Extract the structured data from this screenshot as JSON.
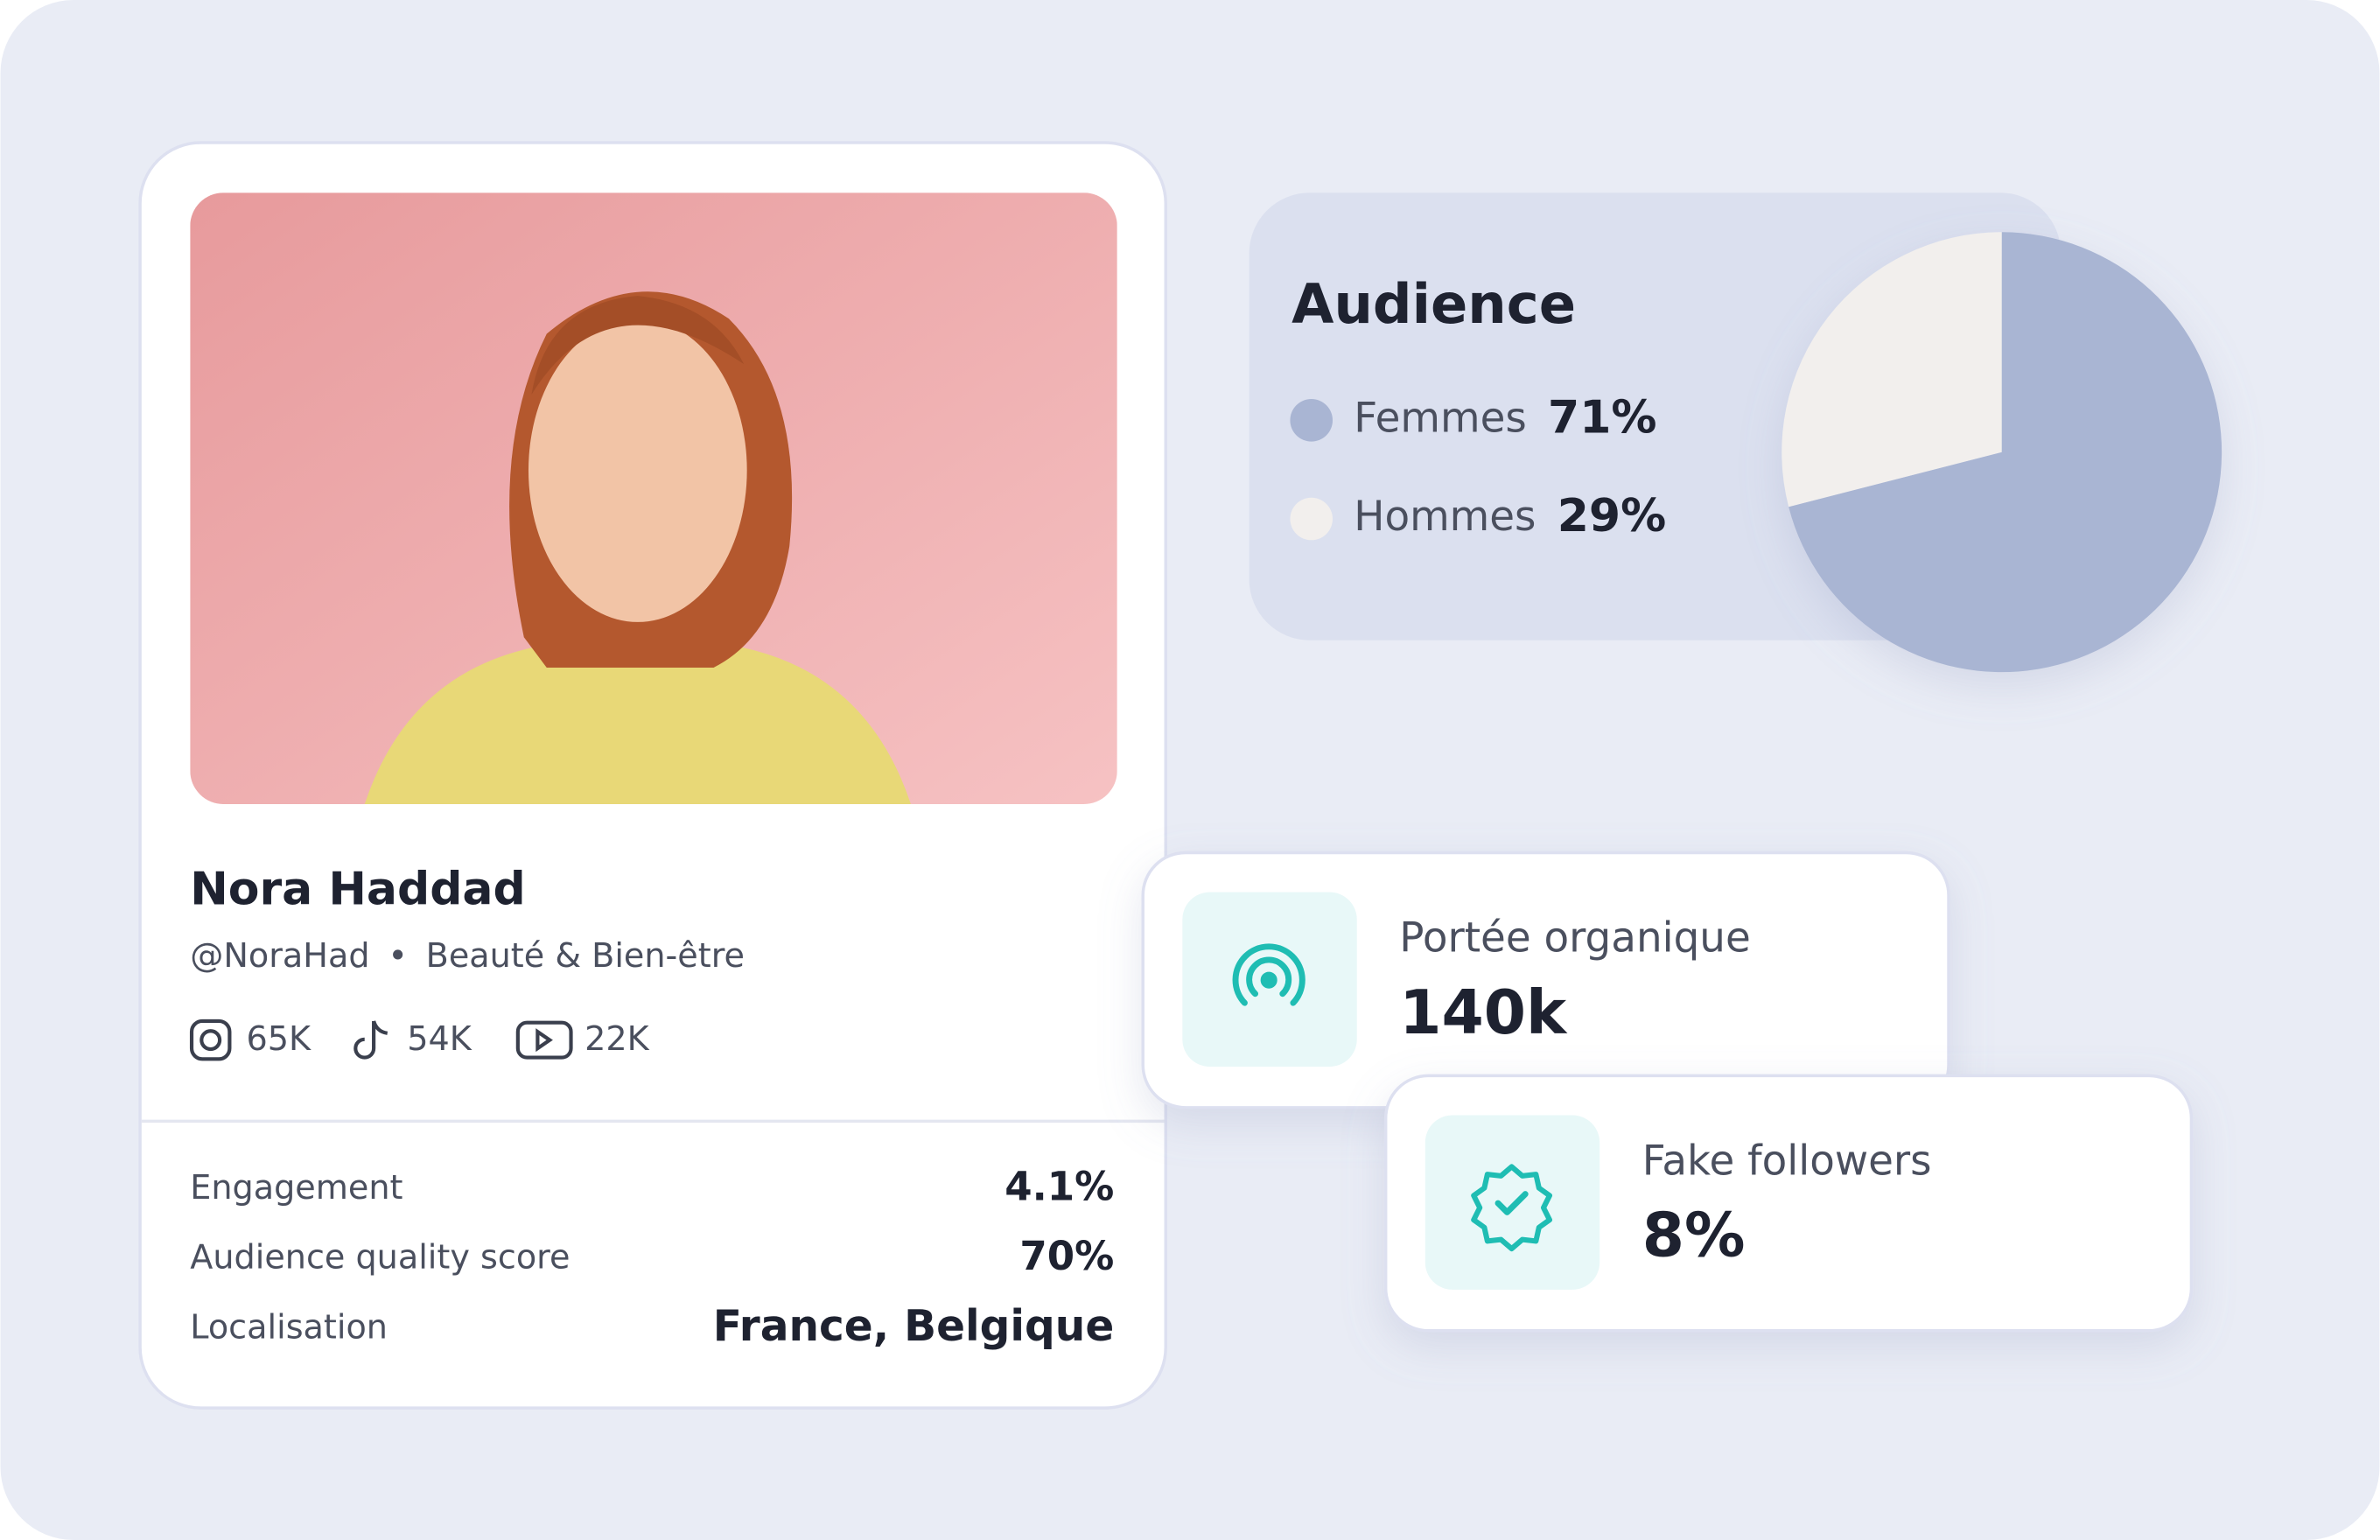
{
  "profile": {
    "name": "Nora Haddad",
    "handle": "@NoraHad",
    "category": "Beauté & Bien-être",
    "socials": [
      "65K",
      "54K",
      "22K"
    ],
    "stats": [
      [
        "Engagement",
        "4.1%"
      ],
      [
        "Audience quality score",
        "70%"
      ],
      [
        "Localisation",
        "France, Belgique"
      ]
    ]
  },
  "audience": {
    "type": "pie",
    "title": "Audience",
    "categories": [
      "Femmes",
      "Hommes"
    ],
    "values": [
      71,
      29
    ],
    "value_labels": [
      "71%",
      "29%"
    ],
    "colors": [
      "#a9b5d3",
      "#f2efed"
    ]
  },
  "metrics": [
    {
      "label": "Portée organique",
      "value": "140k"
    },
    {
      "label": "Fake followers",
      "value": "8%"
    }
  ]
}
